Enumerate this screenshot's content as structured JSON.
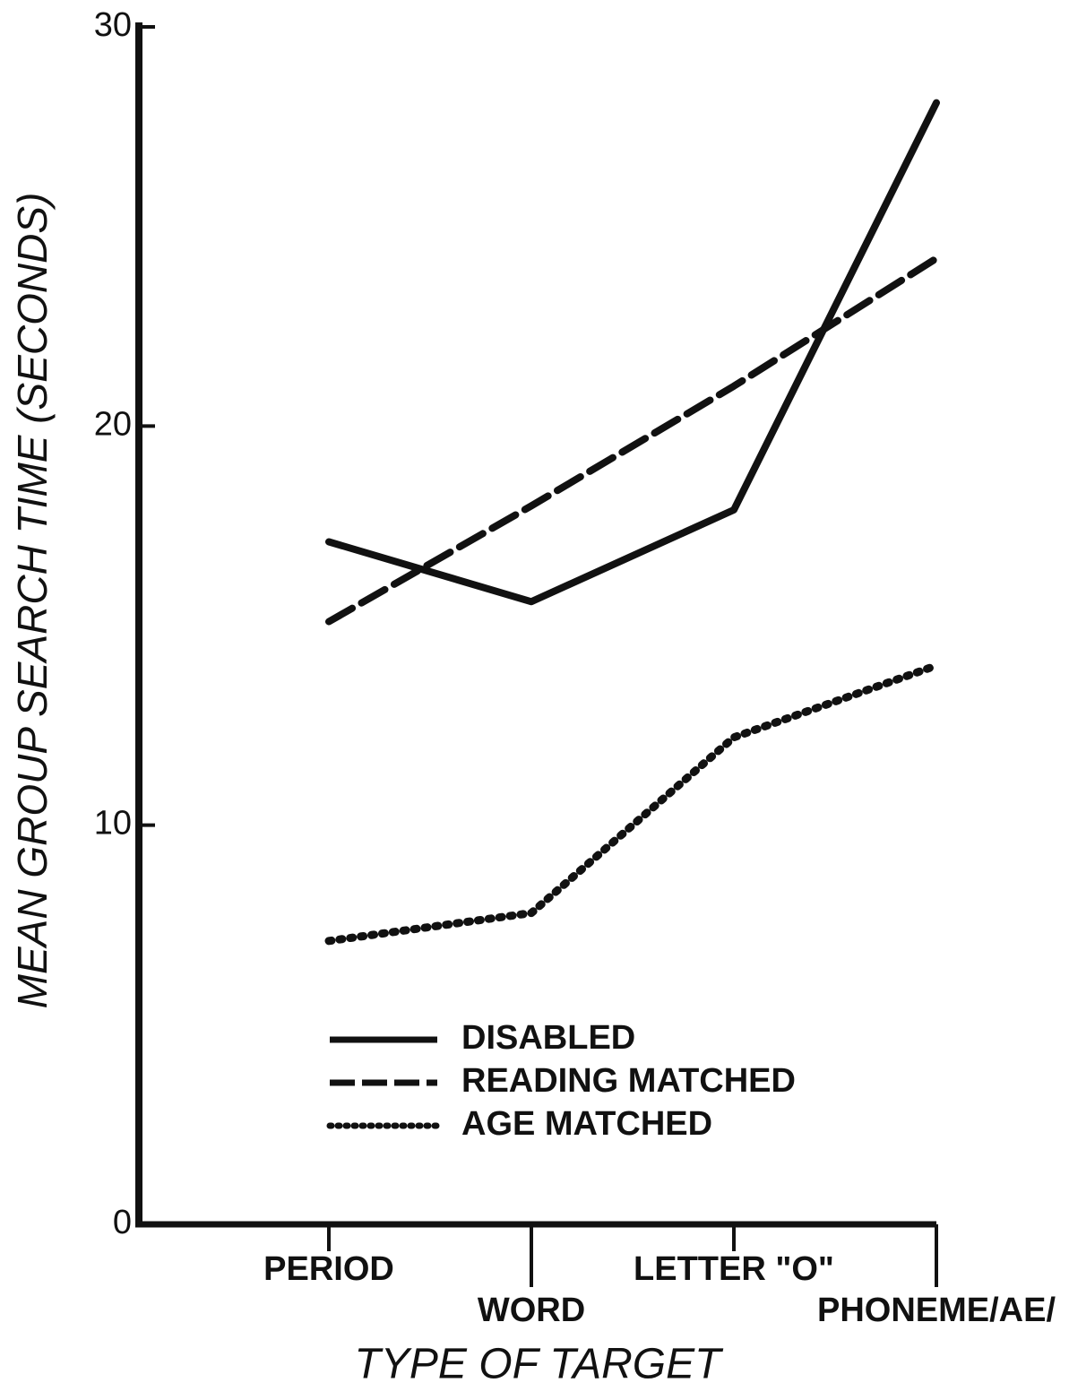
{
  "chart_data": {
    "type": "line",
    "y_label": "MEAN GROUP SEARCH TIME (SECONDS)",
    "x_label": "TYPE OF TARGET",
    "categories": [
      "PERIOD",
      "WORD",
      "LETTER \"O\"",
      "PHONEME/AE/"
    ],
    "series": [
      {
        "name": "DISABLED",
        "color": "#111111",
        "style": "solid",
        "values": [
          17.1,
          15.6,
          17.9,
          28.1
        ]
      },
      {
        "name": "READING MATCHED",
        "color": "#111111",
        "style": "dashed",
        "values": [
          15.1,
          18.0,
          21.0,
          24.2
        ]
      },
      {
        "name": "AGE MATCHED",
        "color": "#111111",
        "style": "dotted",
        "values": [
          7.1,
          7.8,
          12.2,
          14.0
        ]
      }
    ],
    "ylim": [
      0,
      30
    ],
    "yticks": [
      0,
      10,
      20,
      30
    ],
    "grid": false,
    "legend": "lower left"
  }
}
